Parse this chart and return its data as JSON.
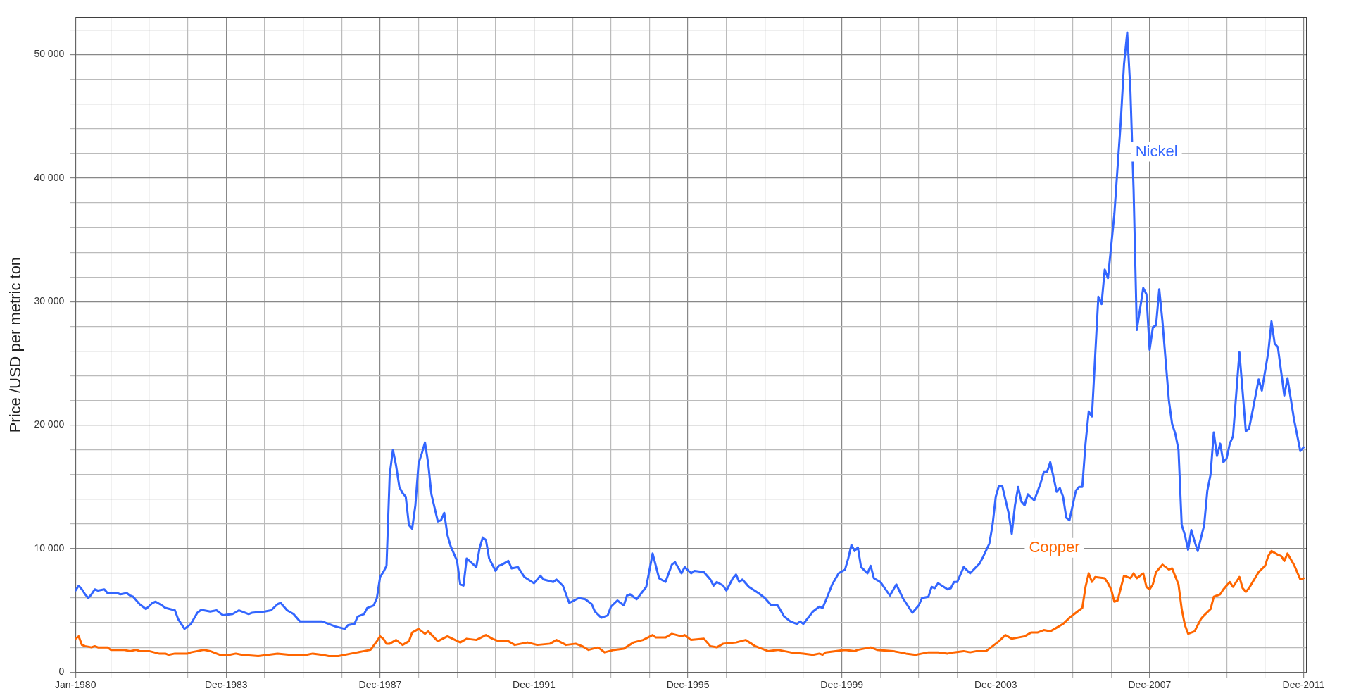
{
  "chart_data": {
    "type": "line",
    "ylabel": "Price /USD per metric ton",
    "grid": true,
    "legend": false,
    "marker": "none",
    "line_style": "solid",
    "xlim": [
      "1980-01",
      "2012-01"
    ],
    "xticks": [
      {
        "value": "1980-01",
        "label": "Jan-1980"
      },
      {
        "value": "1980-12",
        "label": null
      },
      {
        "value": "1981-12",
        "label": null
      },
      {
        "value": "1982-12",
        "label": null
      },
      {
        "value": "1983-12",
        "label": "Dec-1983"
      },
      {
        "value": "1984-12",
        "label": null
      },
      {
        "value": "1985-12",
        "label": null
      },
      {
        "value": "1986-12",
        "label": null
      },
      {
        "value": "1987-12",
        "label": "Dec-1987"
      },
      {
        "value": "1988-12",
        "label": null
      },
      {
        "value": "1989-12",
        "label": null
      },
      {
        "value": "1990-12",
        "label": null
      },
      {
        "value": "1991-12",
        "label": "Dec-1991"
      },
      {
        "value": "1992-12",
        "label": null
      },
      {
        "value": "1993-12",
        "label": null
      },
      {
        "value": "1994-12",
        "label": null
      },
      {
        "value": "1995-12",
        "label": "Dec-1995"
      },
      {
        "value": "1996-12",
        "label": null
      },
      {
        "value": "1997-12",
        "label": null
      },
      {
        "value": "1998-12",
        "label": null
      },
      {
        "value": "1999-12",
        "label": "Dec-1999"
      },
      {
        "value": "2000-12",
        "label": null
      },
      {
        "value": "2001-12",
        "label": null
      },
      {
        "value": "2002-12",
        "label": null
      },
      {
        "value": "2003-12",
        "label": "Dec-2003"
      },
      {
        "value": "2004-12",
        "label": null
      },
      {
        "value": "2005-12",
        "label": null
      },
      {
        "value": "2006-12",
        "label": null
      },
      {
        "value": "2007-12",
        "label": "Dec-2007"
      },
      {
        "value": "2008-12",
        "label": null
      },
      {
        "value": "2009-12",
        "label": null
      },
      {
        "value": "2010-12",
        "label": null
      },
      {
        "value": "2011-12",
        "label": "Dec-2011"
      }
    ],
    "ylim": [
      0,
      53000
    ],
    "yticks": [
      {
        "value": 0,
        "label": "0"
      },
      {
        "value": 2000,
        "label": null
      },
      {
        "value": 4000,
        "label": null
      },
      {
        "value": 6000,
        "label": null
      },
      {
        "value": 8000,
        "label": null
      },
      {
        "value": 10000,
        "label": "10 000"
      },
      {
        "value": 12000,
        "label": null
      },
      {
        "value": 14000,
        "label": null
      },
      {
        "value": 16000,
        "label": null
      },
      {
        "value": 18000,
        "label": null
      },
      {
        "value": 20000,
        "label": "20 000"
      },
      {
        "value": 22000,
        "label": null
      },
      {
        "value": 24000,
        "label": null
      },
      {
        "value": 26000,
        "label": null
      },
      {
        "value": 28000,
        "label": null
      },
      {
        "value": 30000,
        "label": "30 000"
      },
      {
        "value": 32000,
        "label": null
      },
      {
        "value": 34000,
        "label": null
      },
      {
        "value": 36000,
        "label": null
      },
      {
        "value": 38000,
        "label": null
      },
      {
        "value": 40000,
        "label": "40 000"
      },
      {
        "value": 42000,
        "label": null
      },
      {
        "value": 44000,
        "label": null
      },
      {
        "value": 46000,
        "label": null
      },
      {
        "value": 48000,
        "label": null
      },
      {
        "value": 50000,
        "label": "50 000"
      },
      {
        "value": 52000,
        "label": null
      }
    ],
    "series": [
      {
        "name": "Nickel",
        "color": "#3366ff",
        "x": [
          "1980-01",
          "1980-02",
          "1980-03",
          "1980-04",
          "1980-05",
          "1980-06",
          "1980-07",
          "1980-08",
          "1980-10",
          "1980-11",
          "1981-02",
          "1981-03",
          "1981-05",
          "1981-06",
          "1981-07",
          "1981-09",
          "1981-11",
          "1982-01",
          "1982-02",
          "1982-04",
          "1982-05",
          "1982-08",
          "1982-09",
          "1982-11",
          "1983-01",
          "1983-03",
          "1983-04",
          "1983-05",
          "1983-07",
          "1983-09",
          "1983-11",
          "1984-02",
          "1984-04",
          "1984-07",
          "1984-08",
          "1984-12",
          "1985-02",
          "1985-04",
          "1985-05",
          "1985-07",
          "1985-09",
          "1985-11",
          "1986-03",
          "1986-06",
          "1986-08",
          "1986-10",
          "1987-01",
          "1987-02",
          "1987-04",
          "1987-05",
          "1987-07",
          "1987-08",
          "1987-10",
          "1987-11",
          "1987-12",
          "1988-01",
          "1988-02",
          "1988-03",
          "1988-04",
          "1988-05",
          "1988-06",
          "1988-07",
          "1988-08",
          "1988-09",
          "1988-10",
          "1988-11",
          "1988-12",
          "1989-01",
          "1989-02",
          "1989-03",
          "1989-04",
          "1989-06",
          "1989-07",
          "1989-08",
          "1989-09",
          "1989-10",
          "1989-12",
          "1990-01",
          "1990-02",
          "1990-03",
          "1990-06",
          "1990-07",
          "1990-08",
          "1990-09",
          "1990-10",
          "1990-12",
          "1991-01",
          "1991-02",
          "1991-04",
          "1991-05",
          "1991-07",
          "1991-09",
          "1991-12",
          "1992-02",
          "1992-03",
          "1992-06",
          "1992-07",
          "1992-09",
          "1992-11",
          "1993-02",
          "1993-04",
          "1993-06",
          "1993-07",
          "1993-09",
          "1993-11",
          "1993-12",
          "1994-02",
          "1994-04",
          "1994-05",
          "1994-06",
          "1994-08",
          "1994-11",
          "1995-01",
          "1995-03",
          "1995-05",
          "1995-07",
          "1995-08",
          "1995-10",
          "1995-11",
          "1996-01",
          "1996-02",
          "1996-05",
          "1996-07",
          "1996-08",
          "1996-09",
          "1996-11",
          "1996-12",
          "1997-02",
          "1997-03",
          "1997-04",
          "1997-05",
          "1997-07",
          "1997-10",
          "1997-12",
          "1998-02",
          "1998-04",
          "1998-06",
          "1998-08",
          "1998-10",
          "1998-11",
          "1998-12",
          "1999-03",
          "1999-05",
          "1999-06",
          "1999-07",
          "1999-09",
          "1999-11",
          "2000-01",
          "2000-02",
          "2000-03",
          "2000-04",
          "2000-05",
          "2000-06",
          "2000-08",
          "2000-09",
          "2000-10",
          "2000-12",
          "2001-03",
          "2001-05",
          "2001-07",
          "2001-10",
          "2001-12",
          "2002-01",
          "2002-03",
          "2002-04",
          "2002-05",
          "2002-06",
          "2002-09",
          "2002-10",
          "2002-11",
          "2002-12",
          "2003-02",
          "2003-04",
          "2003-07",
          "2003-08",
          "2003-10",
          "2003-11",
          "2003-12",
          "2004-01",
          "2004-02",
          "2004-04",
          "2004-05",
          "2004-06",
          "2004-07",
          "2004-08",
          "2004-09",
          "2004-10",
          "2004-12",
          "2005-02",
          "2005-03",
          "2005-04",
          "2005-05",
          "2005-07",
          "2005-08",
          "2005-09",
          "2005-10",
          "2005-11",
          "2006-01",
          "2006-02",
          "2006-03",
          "2006-04",
          "2006-05",
          "2006-06",
          "2006-08",
          "2006-09",
          "2006-10",
          "2006-11",
          "2007-01",
          "2007-02",
          "2007-03",
          "2007-04",
          "2007-05",
          "2007-06",
          "2007-07",
          "2007-08",
          "2007-09",
          "2007-10",
          "2007-11",
          "2007-12",
          "2008-01",
          "2008-02",
          "2008-03",
          "2008-04",
          "2008-06",
          "2008-07",
          "2008-08",
          "2008-09",
          "2008-10",
          "2008-11",
          "2008-12",
          "2009-01",
          "2009-02",
          "2009-03",
          "2009-05",
          "2009-06",
          "2009-07",
          "2009-08",
          "2009-09",
          "2009-10",
          "2009-11",
          "2009-12",
          "2010-01",
          "2010-02",
          "2010-04",
          "2010-06",
          "2010-07",
          "2010-08",
          "2010-10",
          "2010-11",
          "2011-01",
          "2011-02",
          "2011-03",
          "2011-04",
          "2011-06",
          "2011-07",
          "2011-09",
          "2011-11",
          "2011-12"
        ],
        "values": [
          6600,
          7000,
          6700,
          6300,
          6000,
          6300,
          6700,
          6600,
          6700,
          6400,
          6400,
          6300,
          6400,
          6200,
          6100,
          5500,
          5100,
          5600,
          5700,
          5400,
          5200,
          5000,
          4300,
          3500,
          3900,
          4800,
          5000,
          5000,
          4900,
          5000,
          4600,
          4700,
          5000,
          4700,
          4800,
          4900,
          5000,
          5500,
          5600,
          5000,
          4700,
          4100,
          4100,
          4100,
          3900,
          3700,
          3500,
          3800,
          3900,
          4500,
          4700,
          5200,
          5400,
          6000,
          7700,
          8100,
          8600,
          16000,
          18000,
          16700,
          15000,
          14500,
          14200,
          11900,
          11600,
          13500,
          16900,
          17700,
          18600,
          16900,
          14400,
          12200,
          12300,
          12900,
          11100,
          10200,
          9000,
          7100,
          7000,
          9200,
          8500,
          10000,
          10900,
          10700,
          9200,
          8200,
          8600,
          8700,
          9000,
          8400,
          8500,
          7700,
          7200,
          7800,
          7500,
          7300,
          7500,
          7000,
          5600,
          6000,
          5900,
          5500,
          4900,
          4400,
          4600,
          5300,
          5800,
          5400,
          6200,
          6300,
          5900,
          6900,
          9600,
          7600,
          7300,
          8700,
          8900,
          8000,
          8500,
          8000,
          8200,
          8100,
          7500,
          7000,
          7300,
          7000,
          6600,
          7600,
          7900,
          7300,
          7500,
          6900,
          6400,
          6000,
          5400,
          5400,
          4500,
          4100,
          3900,
          4100,
          3900,
          4900,
          5300,
          5200,
          5800,
          7100,
          8000,
          8300,
          9200,
          10300,
          9800,
          10100,
          8500,
          8000,
          8600,
          7600,
          7300,
          6200,
          7100,
          6000,
          4800,
          5400,
          6000,
          6100,
          6900,
          6800,
          7200,
          6700,
          6800,
          7300,
          7300,
          8500,
          8000,
          8800,
          9300,
          10400,
          11900,
          14200,
          15100,
          15100,
          12900,
          11200,
          13500,
          15000,
          13800,
          13500,
          14400,
          13900,
          15300,
          16200,
          16200,
          17000,
          14600,
          14900,
          14200,
          12500,
          12300,
          14700,
          15000,
          15000,
          18500,
          21100,
          20700,
          30400,
          29800,
          32600,
          31900,
          37100,
          40900,
          44600,
          49200,
          51800,
          47100,
          39000,
          27700,
          29400,
          31100,
          30600,
          26100,
          27900,
          28100,
          31000,
          28400,
          22000,
          20100,
          19300,
          18000,
          11900,
          11100,
          9900,
          11500,
          10600,
          9800,
          11900,
          14700,
          16000,
          19400,
          17500,
          18500,
          17000,
          17300,
          18500,
          19100,
          25900,
          19500,
          19700,
          21000,
          23700,
          22800,
          25900,
          28400,
          26600,
          26300,
          22400,
          23800,
          20500,
          17900,
          18200
        ]
      },
      {
        "name": "Copper",
        "color": "#ff6600",
        "x": [
          "1980-01",
          "1980-02",
          "1980-03",
          "1980-04",
          "1980-06",
          "1980-07",
          "1980-08",
          "1980-11",
          "1980-12",
          "1981-02",
          "1981-04",
          "1981-06",
          "1981-08",
          "1981-09",
          "1981-12",
          "1982-03",
          "1982-05",
          "1982-06",
          "1982-08",
          "1982-12",
          "1983-01",
          "1983-05",
          "1983-07",
          "1983-10",
          "1984-01",
          "1984-03",
          "1984-05",
          "1984-10",
          "1985-01",
          "1985-04",
          "1985-08",
          "1986-01",
          "1986-03",
          "1986-06",
          "1986-08",
          "1986-11",
          "1987-03",
          "1987-07",
          "1987-09",
          "1987-11",
          "1987-12",
          "1988-01",
          "1988-02",
          "1988-03",
          "1988-05",
          "1988-07",
          "1988-09",
          "1988-10",
          "1988-12",
          "1989-02",
          "1989-03",
          "1989-06",
          "1989-09",
          "1990-01",
          "1990-03",
          "1990-06",
          "1990-09",
          "1990-11",
          "1991-01",
          "1991-04",
          "1991-06",
          "1991-10",
          "1992-01",
          "1992-05",
          "1992-07",
          "1992-10",
          "1993-01",
          "1993-03",
          "1993-05",
          "1993-08",
          "1993-10",
          "1994-01",
          "1994-04",
          "1994-07",
          "1994-10",
          "1995-01",
          "1995-02",
          "1995-05",
          "1995-07",
          "1995-10",
          "1995-11",
          "1996-01",
          "1996-05",
          "1996-07",
          "1996-09",
          "1996-11",
          "1997-03",
          "1997-06",
          "1997-09",
          "1997-11",
          "1998-01",
          "1998-04",
          "1998-08",
          "1998-12",
          "1999-03",
          "1999-05",
          "1999-06",
          "1999-07",
          "1999-10",
          "2000-01",
          "2000-04",
          "2000-05",
          "2000-09",
          "2000-11",
          "2001-04",
          "2001-06",
          "2001-08",
          "2001-11",
          "2002-01",
          "2002-03",
          "2002-06",
          "2002-09",
          "2002-11",
          "2003-02",
          "2003-04",
          "2003-06",
          "2003-09",
          "2003-10",
          "2003-11",
          "2004-01",
          "2004-03",
          "2004-05",
          "2004-07",
          "2004-09",
          "2004-11",
          "2005-01",
          "2005-03",
          "2005-05",
          "2005-07",
          "2005-09",
          "2005-11",
          "2006-01",
          "2006-03",
          "2006-04",
          "2006-05",
          "2006-06",
          "2006-07",
          "2006-10",
          "2006-11",
          "2006-12",
          "2007-01",
          "2007-02",
          "2007-04",
          "2007-06",
          "2007-07",
          "2007-08",
          "2007-10",
          "2007-11",
          "2007-12",
          "2008-01",
          "2008-02",
          "2008-04",
          "2008-06",
          "2008-07",
          "2008-09",
          "2008-10",
          "2008-11",
          "2008-12",
          "2009-02",
          "2009-04",
          "2009-05",
          "2009-07",
          "2009-08",
          "2009-10",
          "2009-11",
          "2010-01",
          "2010-02",
          "2010-04",
          "2010-05",
          "2010-06",
          "2010-07",
          "2010-10",
          "2010-12",
          "2011-01",
          "2011-02",
          "2011-04",
          "2011-05",
          "2011-06",
          "2011-07",
          "2011-09",
          "2011-11",
          "2011-12"
        ],
        "values": [
          2700,
          2900,
          2200,
          2100,
          2000,
          2100,
          2000,
          2000,
          1800,
          1800,
          1800,
          1700,
          1800,
          1700,
          1700,
          1500,
          1500,
          1400,
          1500,
          1500,
          1600,
          1800,
          1700,
          1400,
          1400,
          1500,
          1400,
          1300,
          1400,
          1500,
          1400,
          1400,
          1500,
          1400,
          1300,
          1300,
          1500,
          1700,
          1800,
          2500,
          2900,
          2700,
          2300,
          2300,
          2600,
          2200,
          2500,
          3200,
          3500,
          3100,
          3300,
          2500,
          2900,
          2400,
          2700,
          2600,
          3000,
          2700,
          2500,
          2500,
          2200,
          2400,
          2200,
          2300,
          2600,
          2200,
          2300,
          2100,
          1800,
          2000,
          1600,
          1800,
          1900,
          2400,
          2600,
          3000,
          2800,
          2800,
          3100,
          2900,
          3000,
          2600,
          2700,
          2100,
          2000,
          2300,
          2400,
          2600,
          2100,
          1900,
          1700,
          1800,
          1600,
          1500,
          1400,
          1500,
          1400,
          1600,
          1700,
          1800,
          1700,
          1800,
          2000,
          1800,
          1700,
          1600,
          1500,
          1400,
          1500,
          1600,
          1600,
          1500,
          1600,
          1700,
          1600,
          1700,
          1700,
          1900,
          2100,
          2500,
          3000,
          2700,
          2800,
          2900,
          3200,
          3200,
          3400,
          3300,
          3600,
          3900,
          4400,
          4800,
          5200,
          6900,
          8000,
          7300,
          7700,
          7600,
          7200,
          6700,
          5700,
          5800,
          7800,
          7600,
          8000,
          7600,
          8000,
          6900,
          6700,
          7100,
          8100,
          8700,
          8300,
          8400,
          7100,
          5100,
          3800,
          3100,
          3300,
          4300,
          4600,
          5100,
          6100,
          6300,
          6700,
          7300,
          6900,
          7700,
          6800,
          6500,
          6800,
          8100,
          8600,
          9400,
          9800,
          9500,
          9400,
          9000,
          9600,
          8700,
          7500,
          7600
        ]
      }
    ]
  }
}
